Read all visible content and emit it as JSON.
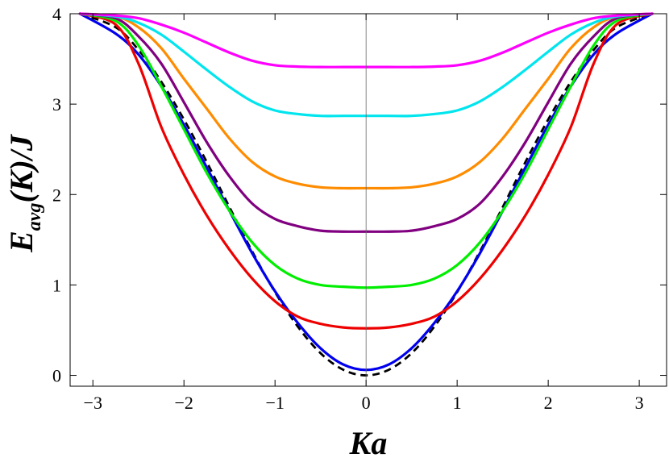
{
  "chart_data": {
    "type": "line",
    "title": "",
    "xlabel": "Ka",
    "ylabel": {
      "main": "E",
      "sub": "avg",
      "rest": "(K)/J"
    },
    "xlim": [
      -3.25,
      3.3
    ],
    "ylim": [
      -0.12,
      4.0
    ],
    "xticks": [
      {
        "value": -3,
        "label": "−3"
      },
      {
        "value": -2,
        "label": "−2"
      },
      {
        "value": -1,
        "label": "−1"
      },
      {
        "value": 0,
        "label": "0"
      },
      {
        "value": 1,
        "label": "1"
      },
      {
        "value": 2,
        "label": "2"
      },
      {
        "value": 3,
        "label": "3"
      }
    ],
    "yticks": [
      {
        "value": 0,
        "label": "0"
      },
      {
        "value": 1,
        "label": "1"
      },
      {
        "value": 2,
        "label": "2"
      },
      {
        "value": 3,
        "label": "3"
      },
      {
        "value": 4,
        "label": "4"
      }
    ],
    "grid": false,
    "zero_line_x": 0,
    "x": [
      -3.1416,
      -2.75,
      -2.5,
      -2.25,
      -2.0,
      -1.75,
      -1.5,
      -1.25,
      -1.0,
      -0.75,
      -0.5,
      -0.25,
      0.0,
      0.25,
      0.5,
      0.75,
      1.0,
      1.25,
      1.5,
      1.75,
      2.0,
      2.25,
      2.5,
      2.75,
      3.1416
    ],
    "series": [
      {
        "color": "#000000",
        "dashed": true,
        "values": [
          4.0,
          3.85,
          3.6,
          3.25,
          2.83,
          2.36,
          1.86,
          1.37,
          0.92,
          0.54,
          0.245,
          0.062,
          0.0,
          0.062,
          0.245,
          0.54,
          0.92,
          1.37,
          1.86,
          2.36,
          2.83,
          3.25,
          3.6,
          3.85,
          4.0
        ]
      },
      {
        "color": "#0000ee",
        "values": [
          4.0,
          3.78,
          3.55,
          3.2,
          2.77,
          2.3,
          1.82,
          1.35,
          0.93,
          0.58,
          0.3,
          0.12,
          0.06,
          0.12,
          0.3,
          0.58,
          0.93,
          1.35,
          1.82,
          2.3,
          2.77,
          3.2,
          3.55,
          3.78,
          4.0
        ]
      },
      {
        "color": "#ee0000",
        "values": [
          4.0,
          3.88,
          3.45,
          2.75,
          2.22,
          1.77,
          1.39,
          1.07,
          0.82,
          0.65,
          0.57,
          0.53,
          0.52,
          0.53,
          0.57,
          0.65,
          0.82,
          1.07,
          1.39,
          1.77,
          2.22,
          2.75,
          3.45,
          3.88,
          4.0
        ]
      },
      {
        "color": "#00ee00",
        "values": [
          4.0,
          3.92,
          3.65,
          3.2,
          2.72,
          2.24,
          1.82,
          1.47,
          1.22,
          1.07,
          1.0,
          0.98,
          0.97,
          0.98,
          1.0,
          1.07,
          1.22,
          1.47,
          1.82,
          2.24,
          2.72,
          3.2,
          3.65,
          3.92,
          4.0
        ]
      },
      {
        "color": "#800080",
        "values": [
          4.0,
          3.95,
          3.75,
          3.45,
          3.02,
          2.58,
          2.2,
          1.9,
          1.73,
          1.65,
          1.6,
          1.59,
          1.59,
          1.59,
          1.6,
          1.65,
          1.73,
          1.9,
          2.2,
          2.58,
          3.02,
          3.45,
          3.75,
          3.95,
          4.0
        ]
      },
      {
        "color": "#ff8c00",
        "values": [
          4.0,
          3.97,
          3.85,
          3.62,
          3.28,
          2.95,
          2.62,
          2.36,
          2.2,
          2.12,
          2.08,
          2.07,
          2.07,
          2.07,
          2.08,
          2.12,
          2.2,
          2.36,
          2.62,
          2.95,
          3.28,
          3.62,
          3.85,
          3.97,
          4.0
        ]
      },
      {
        "color": "#00e5ee",
        "values": [
          4.0,
          3.97,
          3.9,
          3.77,
          3.58,
          3.38,
          3.19,
          3.03,
          2.93,
          2.89,
          2.87,
          2.87,
          2.87,
          2.87,
          2.87,
          2.89,
          2.93,
          3.03,
          3.19,
          3.38,
          3.58,
          3.77,
          3.9,
          3.97,
          4.0
        ]
      },
      {
        "color": "#ff00ff",
        "values": [
          4.0,
          3.98,
          3.95,
          3.88,
          3.79,
          3.68,
          3.57,
          3.48,
          3.43,
          3.415,
          3.41,
          3.41,
          3.41,
          3.41,
          3.41,
          3.415,
          3.43,
          3.48,
          3.57,
          3.68,
          3.79,
          3.88,
          3.95,
          3.98,
          4.0
        ]
      }
    ]
  }
}
